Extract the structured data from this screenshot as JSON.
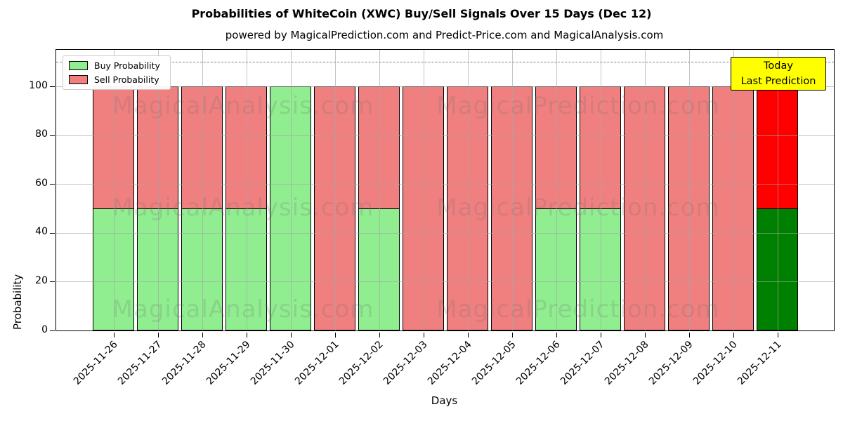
{
  "header": {
    "title": "Probabilities of WhiteCoin (XWC) Buy/Sell Signals Over 15 Days (Dec 12)",
    "subtitle": "powered by MagicalPrediction.com and Predict-Price.com and MagicalAnalysis.com"
  },
  "chart_data": {
    "type": "bar",
    "stacked": true,
    "title": "Probabilities of WhiteCoin (XWC) Buy/Sell Signals Over 15 Days (Dec 12)",
    "subtitle": "powered by MagicalPrediction.com and Predict-Price.com and MagicalAnalysis.com",
    "xlabel": "Days",
    "ylabel": "Probability",
    "ylim": [
      0,
      115
    ],
    "yticks": [
      0,
      20,
      40,
      60,
      80,
      100
    ],
    "grid": true,
    "legend_position": "upper left",
    "threshold_line": {
      "y": 110,
      "style": "dashed",
      "color": "#7f7f7f"
    },
    "categories": [
      "2025-11-26",
      "2025-11-27",
      "2025-11-28",
      "2025-11-29",
      "2025-11-30",
      "2025-12-01",
      "2025-12-02",
      "2025-12-03",
      "2025-12-04",
      "2025-12-05",
      "2025-12-06",
      "2025-12-07",
      "2025-12-08",
      "2025-12-09",
      "2025-12-10",
      "2025-12-11"
    ],
    "series": [
      {
        "name": "Buy Probability",
        "color": "#90EE90",
        "values": [
          49.5,
          49.5,
          49.5,
          49.5,
          100,
          0,
          49.5,
          0,
          0,
          0,
          49.5,
          49.5,
          0,
          0,
          0,
          49.5
        ]
      },
      {
        "name": "Sell Probability",
        "color": "#F08080",
        "values": [
          50.5,
          50.5,
          50.5,
          50.5,
          0,
          100,
          50.5,
          100,
          100,
          100,
          50.5,
          50.5,
          100,
          100,
          100,
          50.5
        ]
      }
    ],
    "today_bar": {
      "index": 15,
      "buy_color": "#008000",
      "sell_color": "#FF0000"
    },
    "annotation": {
      "line1": "Today",
      "line2": "Last Prediction",
      "bg_color": "#FFFF00"
    },
    "watermarks": {
      "left": "MagicalAnalysis.com",
      "right": "MagicalPrediction.com"
    }
  }
}
